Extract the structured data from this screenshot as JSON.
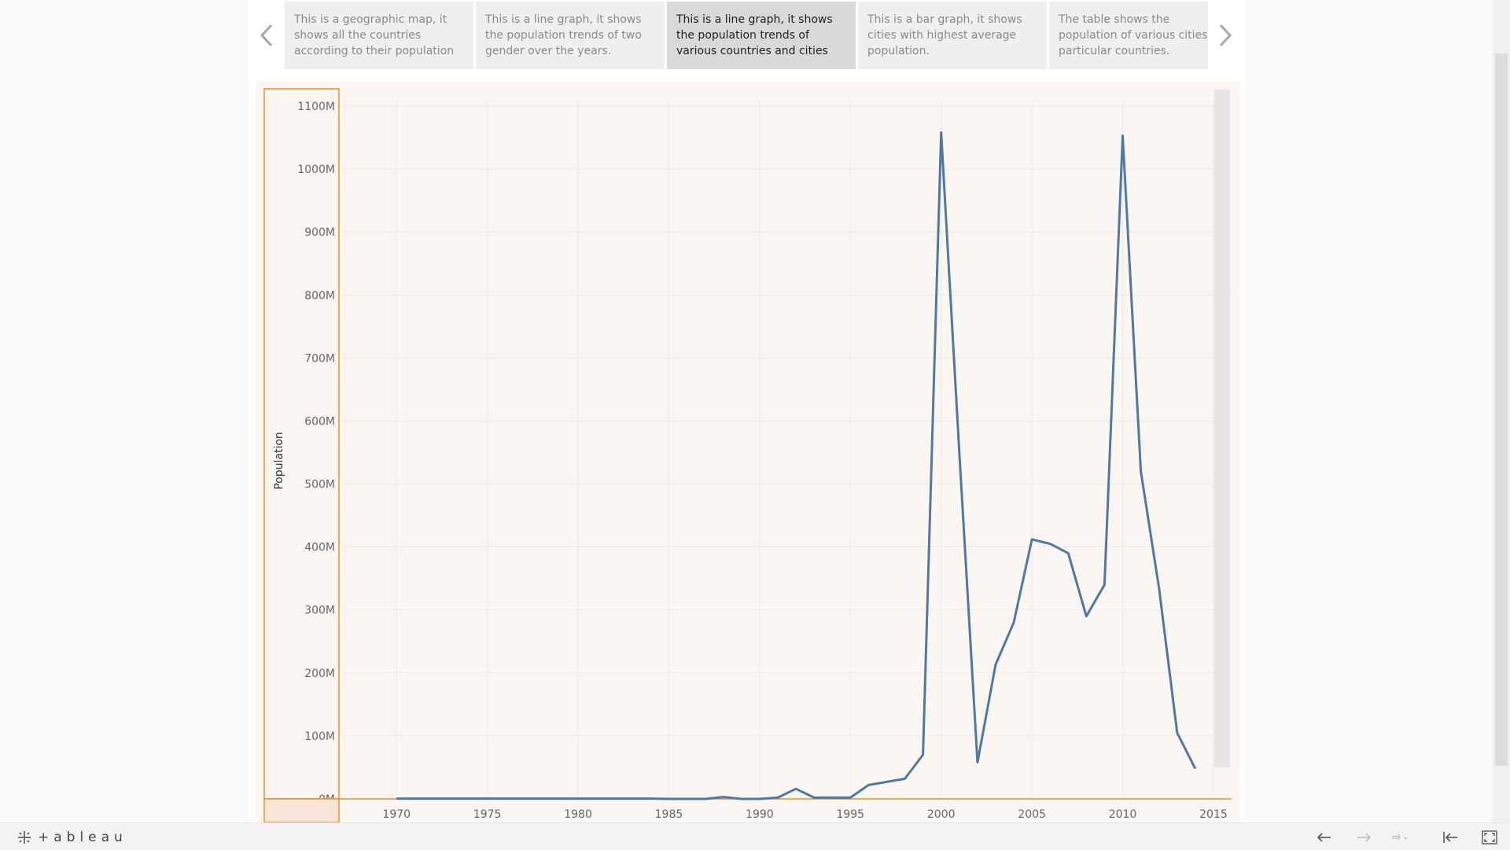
{
  "story": {
    "points": [
      {
        "text": "This is a geographic map, it shows all the countries according to their population",
        "active": false
      },
      {
        "text": "This is a line graph, it shows the population trends of two gender over the years.",
        "active": false
      },
      {
        "text": "This is a line graph, it shows the population trends of various countries and cities",
        "active": true
      },
      {
        "text": "This is a bar graph, it shows cities with highest average population.",
        "active": false
      },
      {
        "text": "The table shows the population of various cities particular countries.",
        "active": false
      }
    ]
  },
  "chart_data": {
    "type": "line",
    "ylabel": "Population",
    "xlabel": "",
    "title": "",
    "xlim": [
      1967,
      2016
    ],
    "ylim": [
      0,
      1100
    ],
    "y_unit": "M",
    "x_ticks": [
      1970,
      1975,
      1980,
      1985,
      1990,
      1995,
      2000,
      2005,
      2010,
      2015
    ],
    "y_ticks": [
      0,
      100,
      200,
      300,
      400,
      500,
      600,
      700,
      800,
      900,
      1000,
      1100
    ],
    "y_tick_labels": [
      "0M",
      "100M",
      "200M",
      "300M",
      "400M",
      "500M",
      "600M",
      "700M",
      "800M",
      "900M",
      "1000M",
      "1100M"
    ],
    "grid": true,
    "series": [
      {
        "color": "#4e79a7",
        "x": [
          1970,
          1971,
          1972,
          1973,
          1974,
          1975,
          1976,
          1977,
          1978,
          1979,
          1980,
          1981,
          1982,
          1983,
          1984,
          1985,
          1986,
          1987,
          1988,
          1989,
          1990,
          1991,
          1992,
          1993,
          1994,
          1995,
          1996,
          1997,
          1998,
          1999,
          2000,
          2001,
          2002,
          2003,
          2004,
          2005,
          2006,
          2007,
          2008,
          2009,
          2010,
          2011,
          2012,
          2013,
          2014
        ],
        "y": [
          0.5,
          0.5,
          0.5,
          0.5,
          0.5,
          0.5,
          0.5,
          0.5,
          0.5,
          0.5,
          0.5,
          0.5,
          0.5,
          0.5,
          0.5,
          0,
          0,
          0,
          3,
          0,
          0,
          2,
          16,
          2,
          2,
          2,
          22,
          27,
          32,
          70,
          1058,
          550,
          58,
          213,
          280,
          412,
          405,
          390,
          290,
          340,
          1053,
          520,
          335,
          105,
          48
        ]
      }
    ]
  },
  "colors": {
    "plot_bg": "#fbf6f2",
    "line": "#4e79a7",
    "axis_highlight": "#f28e2b",
    "active_story": "#d9d9d9"
  },
  "toolbar": {
    "logo": "+ableau",
    "buttons": [
      "undo-icon",
      "redo-icon",
      "revert-icon",
      "reset-icon",
      "fullscreen-icon"
    ]
  }
}
